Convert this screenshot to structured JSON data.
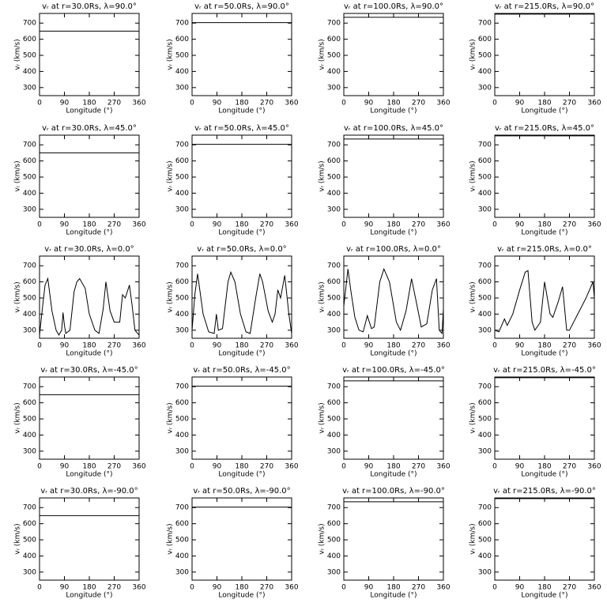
{
  "chart_data": [
    {
      "type": "line",
      "title": "vᵣ at r=30.0Rs, λ=90.0°",
      "x_label": "Longitude (°)",
      "y_label": "vᵣ (km/s)",
      "color": "#000000",
      "x": [
        0,
        360
      ],
      "values": [
        650,
        650
      ],
      "xlim": [
        0,
        360
      ],
      "ylim": [
        250,
        760
      ],
      "xticks": [
        0,
        90,
        180,
        270,
        360
      ],
      "yticks": [
        300,
        400,
        500,
        600,
        700
      ]
    },
    {
      "type": "line",
      "title": "vᵣ at r=50.0Rs, λ=90.0°",
      "x_label": "Longitude (°)",
      "y_label": "vᵣ (km/s)",
      "color": "#000000",
      "x": [
        0,
        360
      ],
      "values": [
        703,
        703
      ],
      "xlim": [
        0,
        360
      ],
      "ylim": [
        250,
        760
      ],
      "xticks": [
        0,
        90,
        180,
        270,
        360
      ],
      "yticks": [
        300,
        400,
        500,
        600,
        700
      ]
    },
    {
      "type": "line",
      "title": "vᵣ at r=100.0Rs, λ=90.0°",
      "x_label": "Longitude (°)",
      "y_label": "vᵣ (km/s)",
      "color": "#000000",
      "x": [
        0,
        360
      ],
      "values": [
        736,
        736
      ],
      "xlim": [
        0,
        360
      ],
      "ylim": [
        250,
        760
      ],
      "xticks": [
        0,
        90,
        180,
        270,
        360
      ],
      "yticks": [
        300,
        400,
        500,
        600,
        700
      ]
    },
    {
      "type": "line",
      "title": "vᵣ at r=215.0Rs, λ=90.0°",
      "x_label": "Longitude (°)",
      "y_label": "vᵣ (km/s)",
      "color": "#000000",
      "x": [
        0,
        360
      ],
      "values": [
        756,
        756
      ],
      "xlim": [
        0,
        360
      ],
      "ylim": [
        250,
        760
      ],
      "xticks": [
        0,
        90,
        180,
        270,
        360
      ],
      "yticks": [
        300,
        400,
        500,
        600,
        700
      ]
    },
    {
      "type": "line",
      "title": "vᵣ at r=30.0Rs, λ=45.0°",
      "x_label": "Longitude (°)",
      "y_label": "vᵣ (km/s)",
      "color": "#000000",
      "x": [
        0,
        360
      ],
      "values": [
        650,
        650
      ],
      "xlim": [
        0,
        360
      ],
      "ylim": [
        250,
        760
      ],
      "xticks": [
        0,
        90,
        180,
        270,
        360
      ],
      "yticks": [
        300,
        400,
        500,
        600,
        700
      ]
    },
    {
      "type": "line",
      "title": "vᵣ at r=50.0Rs, λ=45.0°",
      "x_label": "Longitude (°)",
      "y_label": "vᵣ (km/s)",
      "color": "#000000",
      "x": [
        0,
        360
      ],
      "values": [
        703,
        703
      ],
      "xlim": [
        0,
        360
      ],
      "ylim": [
        250,
        760
      ],
      "xticks": [
        0,
        90,
        180,
        270,
        360
      ],
      "yticks": [
        300,
        400,
        500,
        600,
        700
      ]
    },
    {
      "type": "line",
      "title": "vᵣ at r=100.0Rs, λ=45.0°",
      "x_label": "Longitude (°)",
      "y_label": "vᵣ (km/s)",
      "color": "#000000",
      "x": [
        0,
        360
      ],
      "values": [
        736,
        736
      ],
      "xlim": [
        0,
        360
      ],
      "ylim": [
        250,
        760
      ],
      "xticks": [
        0,
        90,
        180,
        270,
        360
      ],
      "yticks": [
        300,
        400,
        500,
        600,
        700
      ]
    },
    {
      "type": "line",
      "title": "vᵣ at r=215.0Rs, λ=45.0°",
      "x_label": "Longitude (°)",
      "y_label": "vᵣ (km/s)",
      "color": "#000000",
      "x": [
        0,
        360
      ],
      "values": [
        756,
        756
      ],
      "xlim": [
        0,
        360
      ],
      "ylim": [
        250,
        760
      ],
      "xticks": [
        0,
        90,
        180,
        270,
        360
      ],
      "yticks": [
        300,
        400,
        500,
        600,
        700
      ]
    },
    {
      "type": "line",
      "title": "vᵣ at r=30.0Rs, λ=0.0°",
      "x_label": "Longitude (°)",
      "y_label": "vᵣ (km/s)",
      "color": "#000000",
      "x": [
        0,
        10,
        20,
        30,
        45,
        60,
        70,
        80,
        85,
        90,
        95,
        110,
        125,
        135,
        145,
        165,
        180,
        200,
        215,
        230,
        240,
        255,
        270,
        290,
        300,
        310,
        325,
        335,
        345,
        360
      ],
      "values": [
        270,
        430,
        580,
        620,
        420,
        300,
        270,
        300,
        410,
        330,
        280,
        300,
        540,
        600,
        620,
        560,
        400,
        300,
        280,
        430,
        600,
        420,
        350,
        350,
        520,
        500,
        580,
        450,
        300,
        270
      ],
      "xlim": [
        0,
        360
      ],
      "ylim": [
        250,
        760
      ],
      "xticks": [
        0,
        90,
        180,
        270,
        360
      ],
      "yticks": [
        300,
        400,
        500,
        600,
        700
      ]
    },
    {
      "type": "line",
      "title": "vᵣ at r=50.0Rs, λ=0.0°",
      "x_label": "Longitude (°)",
      "y_label": "vᵣ (km/s)",
      "color": "#000000",
      "x": [
        0,
        10,
        20,
        40,
        60,
        80,
        88,
        95,
        110,
        130,
        140,
        155,
        175,
        195,
        210,
        230,
        245,
        255,
        275,
        290,
        300,
        310,
        320,
        335,
        350,
        360
      ],
      "values": [
        300,
        520,
        650,
        400,
        290,
        280,
        400,
        300,
        310,
        600,
        660,
        600,
        400,
        290,
        280,
        500,
        650,
        600,
        420,
        350,
        400,
        550,
        500,
        640,
        400,
        280
      ],
      "xlim": [
        0,
        360
      ],
      "ylim": [
        250,
        760
      ],
      "xticks": [
        0,
        90,
        180,
        270,
        360
      ],
      "yticks": [
        300,
        400,
        500,
        600,
        700
      ]
    },
    {
      "type": "line",
      "title": "vᵣ at r=100.0Rs, λ=0.0°",
      "x_label": "Longitude (°)",
      "y_label": "vᵣ (km/s)",
      "color": "#000000",
      "x": [
        0,
        15,
        25,
        40,
        55,
        70,
        85,
        100,
        110,
        130,
        145,
        165,
        190,
        205,
        225,
        245,
        265,
        280,
        300,
        320,
        335,
        345,
        355,
        360
      ],
      "values": [
        450,
        680,
        550,
        380,
        300,
        290,
        390,
        310,
        320,
        600,
        680,
        600,
        350,
        300,
        420,
        620,
        450,
        320,
        340,
        550,
        620,
        300,
        280,
        430
      ],
      "xlim": [
        0,
        360
      ],
      "ylim": [
        250,
        760
      ],
      "xticks": [
        0,
        90,
        180,
        270,
        360
      ],
      "yticks": [
        300,
        400,
        500,
        600,
        700
      ]
    },
    {
      "type": "line",
      "title": "vᵣ at r=215.0Rs, λ=0.0°",
      "x_label": "Longitude (°)",
      "y_label": "vᵣ (km/s)",
      "color": "#000000",
      "x": [
        0,
        15,
        35,
        45,
        65,
        90,
        110,
        120,
        135,
        145,
        165,
        180,
        200,
        210,
        230,
        245,
        260,
        270,
        300,
        330,
        355,
        360
      ],
      "values": [
        300,
        290,
        370,
        330,
        400,
        550,
        660,
        670,
        350,
        300,
        350,
        600,
        400,
        380,
        480,
        570,
        300,
        300,
        400,
        500,
        600,
        500
      ],
      "xlim": [
        0,
        360
      ],
      "ylim": [
        250,
        760
      ],
      "xticks": [
        0,
        90,
        180,
        270,
        360
      ],
      "yticks": [
        300,
        400,
        500,
        600,
        700
      ]
    },
    {
      "type": "line",
      "title": "vᵣ at r=30.0Rs, λ=-45.0°",
      "x_label": "Longitude (°)",
      "y_label": "vᵣ (km/s)",
      "color": "#000000",
      "x": [
        0,
        360
      ],
      "values": [
        650,
        650
      ],
      "xlim": [
        0,
        360
      ],
      "ylim": [
        250,
        760
      ],
      "xticks": [
        0,
        90,
        180,
        270,
        360
      ],
      "yticks": [
        300,
        400,
        500,
        600,
        700
      ]
    },
    {
      "type": "line",
      "title": "vᵣ at r=50.0Rs, λ=-45.0°",
      "x_label": "Longitude (°)",
      "y_label": "vᵣ (km/s)",
      "color": "#000000",
      "x": [
        0,
        360
      ],
      "values": [
        703,
        703
      ],
      "xlim": [
        0,
        360
      ],
      "ylim": [
        250,
        760
      ],
      "xticks": [
        0,
        90,
        180,
        270,
        360
      ],
      "yticks": [
        300,
        400,
        500,
        600,
        700
      ]
    },
    {
      "type": "line",
      "title": "vᵣ at r=100.0Rs, λ=-45.0°",
      "x_label": "Longitude (°)",
      "y_label": "vᵣ (km/s)",
      "color": "#000000",
      "x": [
        0,
        360
      ],
      "values": [
        736,
        736
      ],
      "xlim": [
        0,
        360
      ],
      "ylim": [
        250,
        760
      ],
      "xticks": [
        0,
        90,
        180,
        270,
        360
      ],
      "yticks": [
        300,
        400,
        500,
        600,
        700
      ]
    },
    {
      "type": "line",
      "title": "vᵣ at r=215.0Rs, λ=-45.0°",
      "x_label": "Longitude (°)",
      "y_label": "vᵣ (km/s)",
      "color": "#000000",
      "x": [
        0,
        360
      ],
      "values": [
        756,
        756
      ],
      "xlim": [
        0,
        360
      ],
      "ylim": [
        250,
        760
      ],
      "xticks": [
        0,
        90,
        180,
        270,
        360
      ],
      "yticks": [
        300,
        400,
        500,
        600,
        700
      ]
    },
    {
      "type": "line",
      "title": "vᵣ at r=30.0Rs, λ=-90.0°",
      "x_label": "Longitude (°)",
      "y_label": "vᵣ (km/s)",
      "color": "#000000",
      "x": [
        0,
        360
      ],
      "values": [
        650,
        650
      ],
      "xlim": [
        0,
        360
      ],
      "ylim": [
        250,
        760
      ],
      "xticks": [
        0,
        90,
        180,
        270,
        360
      ],
      "yticks": [
        300,
        400,
        500,
        600,
        700
      ]
    },
    {
      "type": "line",
      "title": "vᵣ at r=50.0Rs, λ=-90.0°",
      "x_label": "Longitude (°)",
      "y_label": "vᵣ (km/s)",
      "color": "#000000",
      "x": [
        0,
        360
      ],
      "values": [
        703,
        703
      ],
      "xlim": [
        0,
        360
      ],
      "ylim": [
        250,
        760
      ],
      "xticks": [
        0,
        90,
        180,
        270,
        360
      ],
      "yticks": [
        300,
        400,
        500,
        600,
        700
      ]
    },
    {
      "type": "line",
      "title": "vᵣ at r=100.0Rs, λ=-90.0°",
      "x_label": "Longitude (°)",
      "y_label": "vᵣ (km/s)",
      "color": "#000000",
      "x": [
        0,
        360
      ],
      "values": [
        736,
        736
      ],
      "xlim": [
        0,
        360
      ],
      "ylim": [
        250,
        760
      ],
      "xticks": [
        0,
        90,
        180,
        270,
        360
      ],
      "yticks": [
        300,
        400,
        500,
        600,
        700
      ]
    },
    {
      "type": "line",
      "title": "vᵣ at r=215.0Rs, λ=-90.0°",
      "x_label": "Longitude (°)",
      "y_label": "vᵣ (km/s)",
      "color": "#000000",
      "x": [
        0,
        360
      ],
      "values": [
        756,
        756
      ],
      "xlim": [
        0,
        360
      ],
      "ylim": [
        250,
        760
      ],
      "xticks": [
        0,
        90,
        180,
        270,
        360
      ],
      "yticks": [
        300,
        400,
        500,
        600,
        700
      ]
    }
  ]
}
